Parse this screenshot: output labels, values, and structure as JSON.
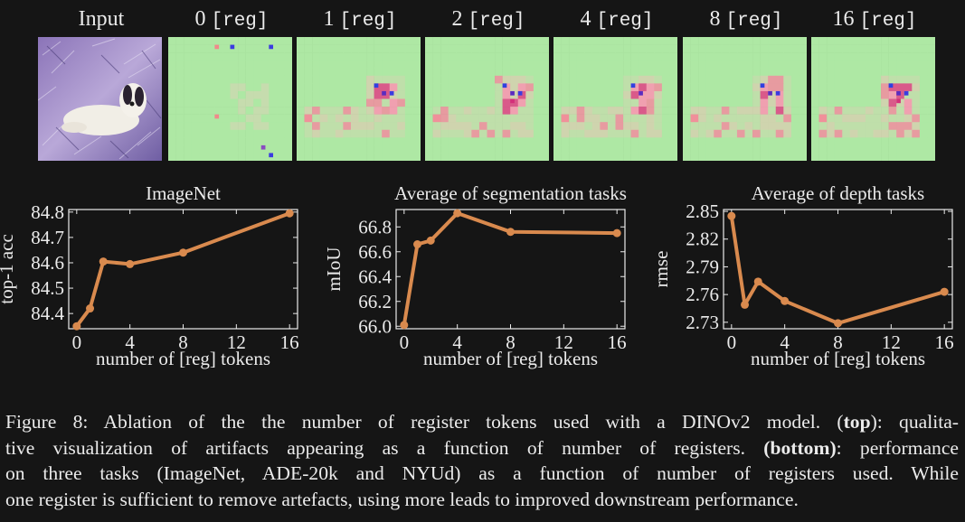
{
  "top": {
    "input_label": "Input",
    "panels": [
      {
        "num": "0",
        "tag": "[reg]"
      },
      {
        "num": "1",
        "tag": "[reg]"
      },
      {
        "num": "2",
        "tag": "[reg]"
      },
      {
        "num": "4",
        "tag": "[reg]"
      },
      {
        "num": "8",
        "tag": "[reg]"
      },
      {
        "num": "16",
        "tag": "[reg]"
      }
    ]
  },
  "colors": {
    "line": "#d98a4e",
    "background": "#151515",
    "text": "#ebebeb",
    "map_bg": "#aee8a4"
  },
  "chart_data": [
    {
      "type": "line",
      "title": "ImageNet",
      "xlabel": "number of [reg] tokens",
      "ylabel": "top-1 acc",
      "x": [
        0,
        1,
        2,
        4,
        8,
        16
      ],
      "y": [
        84.35,
        84.42,
        84.605,
        84.595,
        84.64,
        84.795
      ],
      "xticks": [
        0,
        4,
        8,
        12,
        16
      ],
      "yticks": [
        84.4,
        84.5,
        84.6,
        84.7,
        84.8
      ],
      "xlim": [
        -0.6,
        16.6
      ],
      "ylim": [
        84.34,
        84.81
      ],
      "grid": false
    },
    {
      "type": "line",
      "title": "Average of segmentation tasks",
      "xlabel": "number of [reg] tokens",
      "ylabel": "mIoU",
      "x": [
        0,
        1,
        2,
        4,
        8,
        16
      ],
      "y": [
        66.01,
        66.66,
        66.69,
        66.91,
        66.76,
        66.75
      ],
      "xticks": [
        0,
        4,
        8,
        12,
        16
      ],
      "yticks": [
        66.0,
        66.2,
        66.4,
        66.6,
        66.8
      ],
      "ytick_labels": [
        "66.0",
        "66.2",
        "66.4",
        "66.6",
        "66.8"
      ],
      "xlim": [
        -0.6,
        16.6
      ],
      "ylim": [
        65.98,
        66.94
      ],
      "grid": false
    },
    {
      "type": "line",
      "title": "Average of depth tasks",
      "xlabel": "number of [reg] tokens",
      "ylabel": "rmse",
      "x": [
        0,
        1,
        2,
        4,
        8,
        16
      ],
      "y": [
        2.845,
        2.749,
        2.774,
        2.753,
        2.729,
        2.763
      ],
      "xticks": [
        0,
        4,
        8,
        12,
        16
      ],
      "yticks": [
        2.73,
        2.76,
        2.79,
        2.82,
        2.85
      ],
      "ytick_labels": [
        "2.73",
        "2.76",
        "2.79",
        "2.82",
        "2.85"
      ],
      "xlim": [
        -0.6,
        16.6
      ],
      "ylim": [
        2.723,
        2.852
      ],
      "grid": false
    }
  ],
  "caption": {
    "l1_a": "Figure 8: Ablation of the the number of register tokens used with a DINOv2 model. (",
    "l1_b": "top",
    "l1_c": "): qualita-",
    "l2_a": "tive visualization of artifacts appearing as a function of number of registers. ",
    "l2_b": "(bottom)",
    "l2_c": ": performance",
    "l3": "on three tasks (ImageNet, ADE-20k and NYUd) as a function of number of registers used. While",
    "l4": "one register is sufficient to remove artefacts, using more leads to improved downstream performance."
  }
}
